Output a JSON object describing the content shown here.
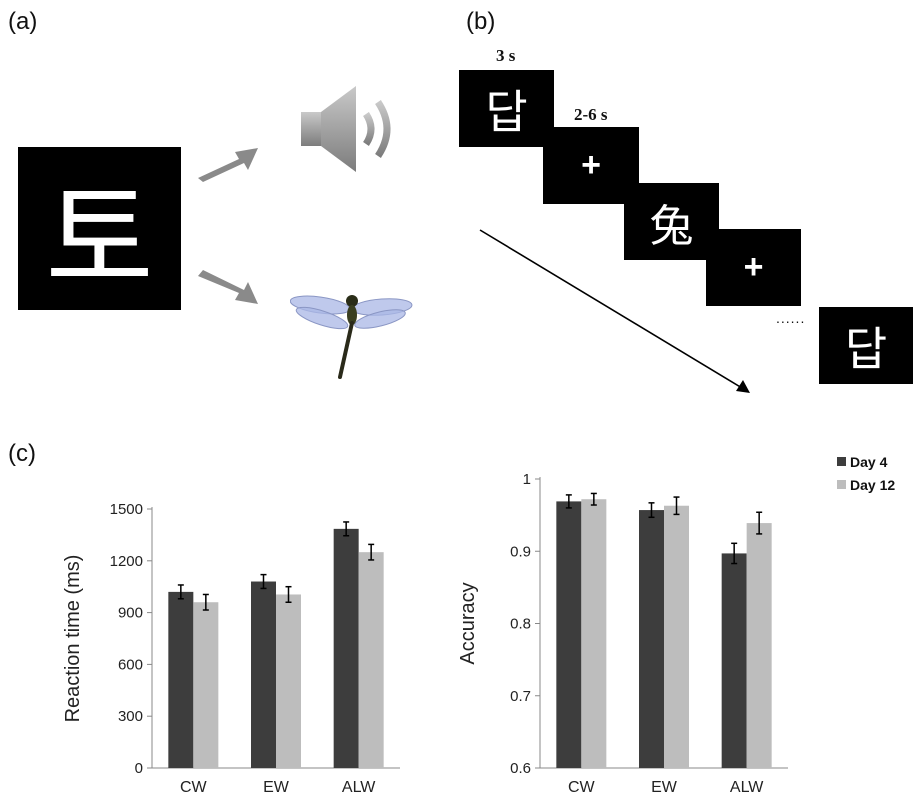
{
  "panels": {
    "a": {
      "label": "(a)",
      "stimulus_char": "토"
    },
    "b": {
      "label": "(b)",
      "timing_1": "3 s",
      "timing_2": "2-6 s",
      "frames": [
        "답",
        "+",
        "兔",
        "+",
        "답"
      ],
      "ellipsis": "......"
    },
    "c": {
      "label": "(c)"
    }
  },
  "legend": {
    "items": [
      {
        "name": "Day 4",
        "color": "#3d3d3d"
      },
      {
        "name": "Day 12",
        "color": "#bdbdbd"
      }
    ]
  },
  "chart_data": [
    {
      "type": "bar",
      "categories": [
        "CW",
        "EW",
        "ALW"
      ],
      "series": [
        {
          "name": "Day 4",
          "values": [
            1020,
            1080,
            1385
          ],
          "errors": [
            40,
            40,
            40
          ]
        },
        {
          "name": "Day 12",
          "values": [
            960,
            1005,
            1250
          ],
          "errors": [
            45,
            45,
            45
          ]
        }
      ],
      "ylabel": "Reaction time (ms)",
      "ylim": [
        0,
        1500
      ],
      "yticks": [
        "0",
        "300",
        "600",
        "900",
        "1200",
        "1500"
      ],
      "colors": [
        "#3d3d3d",
        "#bdbdbd"
      ]
    },
    {
      "type": "bar",
      "categories": [
        "CW",
        "EW",
        "ALW"
      ],
      "series": [
        {
          "name": "Day 4",
          "values": [
            0.969,
            0.957,
            0.897
          ],
          "errors": [
            0.009,
            0.01,
            0.014
          ]
        },
        {
          "name": "Day 12",
          "values": [
            0.972,
            0.963,
            0.939
          ],
          "errors": [
            0.008,
            0.012,
            0.015
          ]
        }
      ],
      "ylabel": "Accuracy",
      "ylim": [
        0.6,
        1.0
      ],
      "yticks": [
        "0.6",
        "0.7",
        "0.8",
        "0.9",
        "1"
      ],
      "colors": [
        "#3d3d3d",
        "#bdbdbd"
      ]
    }
  ]
}
